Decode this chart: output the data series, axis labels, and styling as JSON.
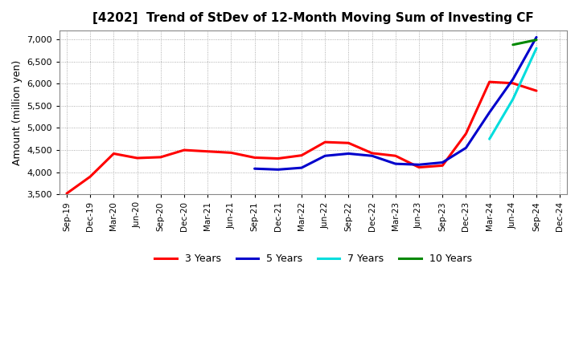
{
  "title": "[4202]  Trend of StDev of 12-Month Moving Sum of Investing CF",
  "ylabel": "Amount (million yen)",
  "background_color": "#ffffff",
  "plot_bg_color": "#ffffff",
  "grid_color": "#aaaaaa",
  "ylim": [
    3500,
    7200
  ],
  "yticks": [
    3500,
    4000,
    4500,
    5000,
    5500,
    6000,
    6500,
    7000
  ],
  "series": {
    "3 Years": {
      "color": "#ff0000",
      "x": [
        "Sep-19",
        "Dec-19",
        "Mar-20",
        "Jun-20",
        "Sep-20",
        "Dec-20",
        "Mar-21",
        "Jun-21",
        "Sep-21",
        "Dec-21",
        "Mar-22",
        "Jun-22",
        "Sep-22",
        "Dec-22",
        "Mar-23",
        "Jun-23",
        "Sep-23",
        "Dec-23",
        "Mar-24",
        "Jun-24",
        "Sep-24"
      ],
      "y": [
        3520,
        3900,
        4420,
        4320,
        4340,
        4500,
        4470,
        4440,
        4330,
        4310,
        4380,
        4680,
        4660,
        4430,
        4370,
        4110,
        4150,
        4870,
        6040,
        6010,
        5840
      ]
    },
    "5 Years": {
      "color": "#0000cc",
      "x": [
        "Sep-21",
        "Dec-21",
        "Mar-22",
        "Jun-22",
        "Sep-22",
        "Dec-22",
        "Mar-23",
        "Jun-23",
        "Sep-23",
        "Dec-23",
        "Mar-24",
        "Jun-24",
        "Sep-24"
      ],
      "y": [
        4080,
        4060,
        4100,
        4370,
        4420,
        4370,
        4190,
        4170,
        4220,
        4550,
        5350,
        6100,
        7050
      ]
    },
    "7 Years": {
      "color": "#00dddd",
      "x": [
        "Mar-24",
        "Jun-24",
        "Sep-24"
      ],
      "y": [
        4750,
        5650,
        6800
      ]
    },
    "10 Years": {
      "color": "#008800",
      "x": [
        "Jun-24",
        "Sep-24"
      ],
      "y": [
        6880,
        6990
      ]
    }
  },
  "xtick_labels": [
    "Sep-19",
    "Dec-19",
    "Mar-20",
    "Jun-20",
    "Sep-20",
    "Dec-20",
    "Mar-21",
    "Jun-21",
    "Sep-21",
    "Dec-21",
    "Mar-22",
    "Jun-22",
    "Sep-22",
    "Dec-22",
    "Mar-23",
    "Jun-23",
    "Sep-23",
    "Dec-23",
    "Mar-24",
    "Jun-24",
    "Sep-24",
    "Dec-24"
  ],
  "legend_labels": [
    "3 Years",
    "5 Years",
    "7 Years",
    "10 Years"
  ],
  "legend_colors": [
    "#ff0000",
    "#0000cc",
    "#00dddd",
    "#008800"
  ]
}
